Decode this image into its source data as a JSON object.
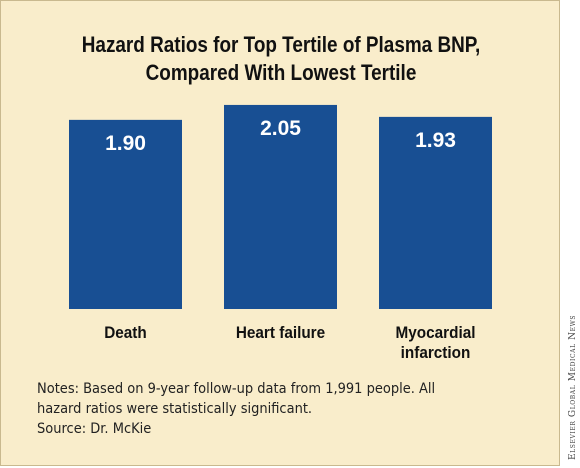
{
  "colors": {
    "bar": "#184f93",
    "background": "#f9edcb",
    "bar_text": "#ffffff"
  },
  "chart_data": {
    "type": "bar",
    "title_lines": [
      "Hazard Ratios for Top Tertile of Plasma BNP,",
      "Compared With Lowest Tertile"
    ],
    "categories": [
      "Death",
      "Heart failure",
      "Myocardial infarction"
    ],
    "category_label_lines": [
      [
        "Death"
      ],
      [
        "Heart failure"
      ],
      [
        "Myocardial",
        "infarction"
      ]
    ],
    "values": [
      1.9,
      2.05,
      1.93
    ],
    "value_labels": [
      "1.90",
      "2.05",
      "1.93"
    ],
    "xlabel": "",
    "ylabel": "",
    "ylim": [
      0,
      2.2
    ],
    "grid": false,
    "legend": "none"
  },
  "notes": {
    "line1": "Notes: Based on 9-year follow-up data from 1,991 people. All",
    "line2": "hazard ratios were statistically significant.",
    "line3": "Source: Dr. McKie"
  },
  "credit": "Elsevier Global Medical News"
}
